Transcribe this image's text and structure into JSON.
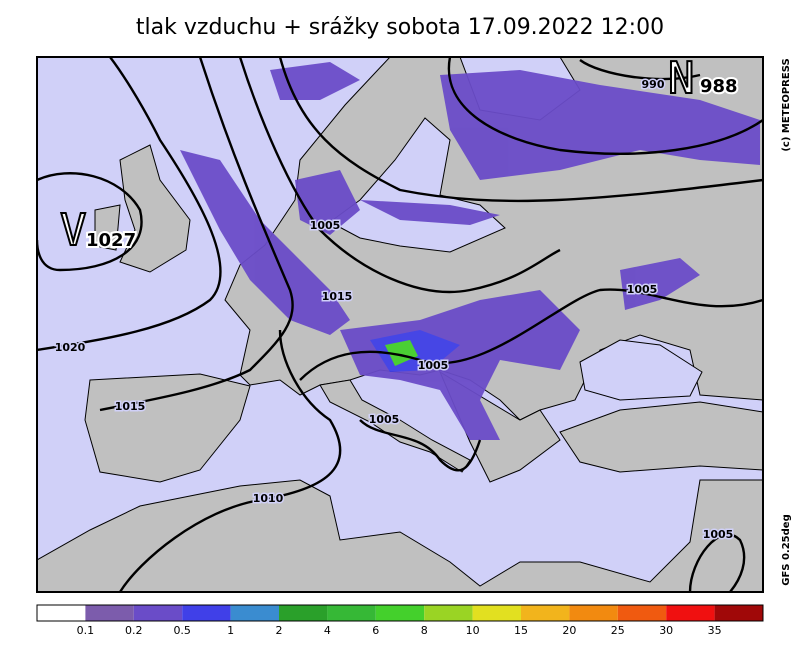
{
  "title": "tlak vzduchu + srážky  sobota 17.09.2022 12:00",
  "credit": "(c) METEOPRESS",
  "model": "GFS 0.25deg",
  "pressure_centers": [
    {
      "letter": "V",
      "value": "1027"
    },
    {
      "letter": "N",
      "value": "988"
    }
  ],
  "isobar_labels": [
    "990",
    "1005",
    "1015",
    "1020",
    "1015",
    "1005",
    "1005",
    "1005",
    "1010",
    "1005"
  ],
  "legend": {
    "labels": [
      "0.1",
      "0.2",
      "0.5",
      "1",
      "2",
      "4",
      "6",
      "8",
      "10",
      "15",
      "20",
      "25",
      "30",
      "35"
    ],
    "colors": [
      "#ffffff",
      "#7c5cac",
      "#6a4cc8",
      "#4040e8",
      "#3a8cd0",
      "#2aa02a",
      "#36b836",
      "#44d02c",
      "#9ad424",
      "#e2e020",
      "#f2b41c",
      "#f28a10",
      "#f05a10",
      "#f01010",
      "#a00808"
    ]
  }
}
